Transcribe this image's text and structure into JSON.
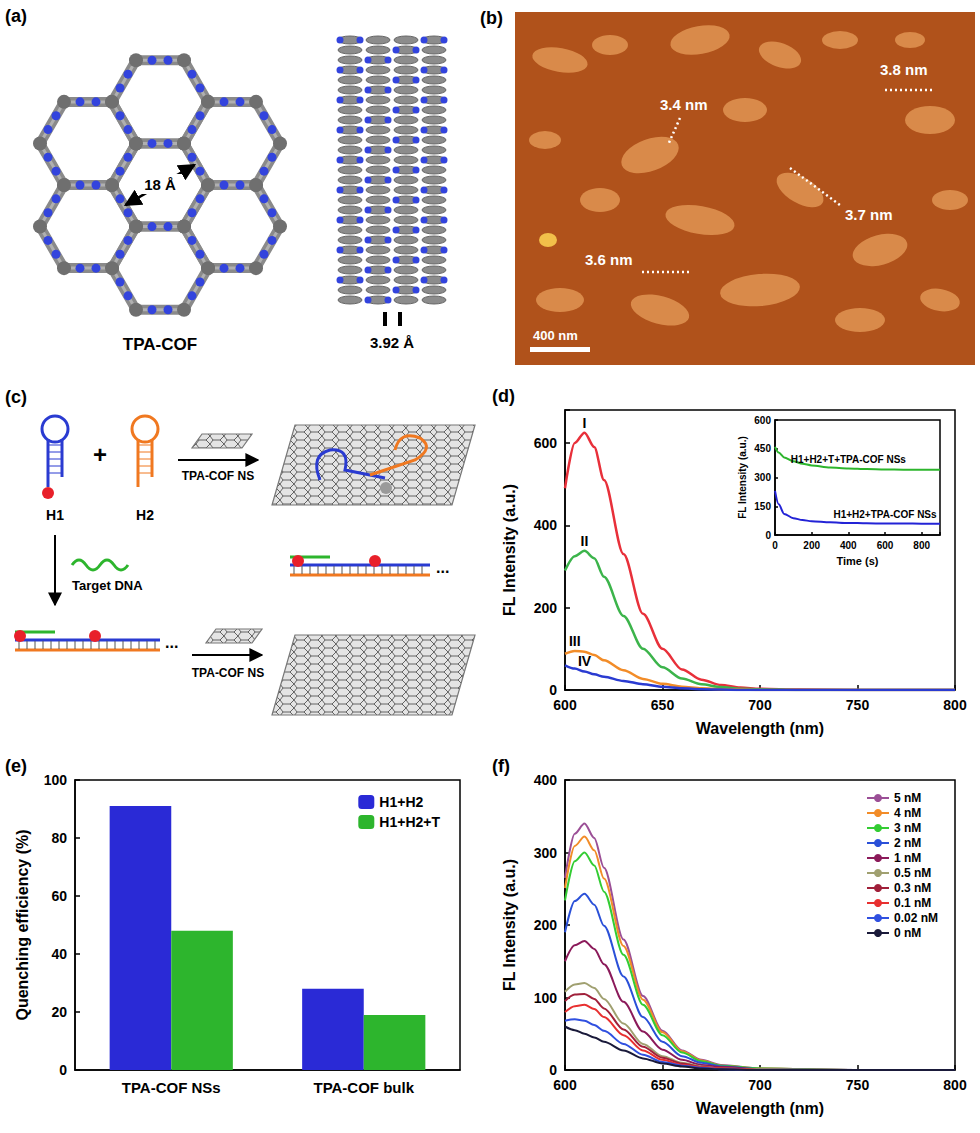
{
  "chart_data": [
    {
      "panel": "(d)",
      "type": "line",
      "xlabel": "Wavelength (nm)",
      "ylabel": "FL Intensity (a.u.)",
      "x": [
        600,
        605,
        610,
        615,
        620,
        630,
        640,
        650,
        660,
        670,
        680,
        690,
        700,
        720,
        750,
        800
      ],
      "series": [
        {
          "name": "I",
          "color": "#e8303a",
          "values": [
            490,
            600,
            625,
            590,
            510,
            330,
            185,
            100,
            50,
            25,
            12,
            6,
            3,
            1,
            0,
            0
          ]
        },
        {
          "name": "II",
          "color": "#3cb44b",
          "values": [
            290,
            325,
            338,
            320,
            275,
            180,
            100,
            55,
            28,
            14,
            7,
            3,
            2,
            0,
            0,
            0
          ]
        },
        {
          "name": "III",
          "color": "#f28c28",
          "values": [
            88,
            95,
            93,
            85,
            72,
            48,
            27,
            15,
            8,
            4,
            2,
            1,
            0,
            0,
            0,
            0
          ]
        },
        {
          "name": "IV",
          "color": "#2a3bd1",
          "values": [
            60,
            52,
            45,
            38,
            32,
            22,
            14,
            8,
            4,
            2,
            1,
            0,
            0,
            0,
            0,
            0
          ]
        }
      ],
      "xlim": [
        600,
        800
      ],
      "xticks": [
        600,
        650,
        700,
        750,
        800
      ],
      "ylim": [
        0,
        680
      ],
      "yticks": [
        0,
        200,
        400,
        600
      ],
      "grid": false,
      "inset": {
        "type": "line",
        "xlabel": "Time (s)",
        "ylabel": "FL Intensity (a.u.)",
        "x": [
          0,
          20,
          50,
          100,
          150,
          200,
          300,
          400,
          500,
          600,
          700,
          800,
          900
        ],
        "series": [
          {
            "name": "H1+H2+T+TPA-COF NSs",
            "color": "#2db52d",
            "values": [
              460,
              430,
              405,
              385,
              372,
              363,
              352,
              347,
              344,
              342,
              341,
              340,
              340
            ]
          },
          {
            "name": "H1+H2+TPA-COF NSs",
            "color": "#2323d6",
            "values": [
              230,
              160,
              110,
              88,
              78,
              72,
              66,
              63,
              61,
              60,
              60,
              59,
              59
            ]
          }
        ],
        "xlim": [
          0,
          900
        ],
        "xticks": [
          0,
          200,
          400,
          600,
          800
        ],
        "ylim": [
          0,
          600
        ],
        "yticks": [
          0,
          150,
          300,
          450,
          600
        ],
        "grid": false
      }
    },
    {
      "panel": "(e)",
      "type": "bar",
      "ylabel": "Quenching efficiency (%)",
      "categories": [
        "TPA-COF NSs",
        "TPA-COF bulk"
      ],
      "series": [
        {
          "name": "H1+H2",
          "color": "#2a2ad6",
          "values": [
            91,
            28
          ]
        },
        {
          "name": "H1+H2+T",
          "color": "#2db52d",
          "values": [
            48,
            19
          ]
        }
      ],
      "ylim": [
        0,
        100
      ],
      "yticks": [
        0,
        20,
        40,
        60,
        80,
        100
      ],
      "legend": "upper right",
      "grid": false
    },
    {
      "panel": "(f)",
      "type": "line",
      "xlabel": "Wavelength (nm)",
      "ylabel": "FL Intensity (a.u.)",
      "x": [
        600,
        605,
        610,
        615,
        620,
        630,
        640,
        650,
        660,
        670,
        680,
        700,
        750,
        800
      ],
      "series": [
        {
          "name": "5 nM",
          "color": "#9b4f96",
          "values": [
            265,
            326,
            340,
            320,
            279,
            180,
            102,
            54,
            27,
            14,
            7,
            2,
            0,
            0
          ]
        },
        {
          "name": "4 nM",
          "color": "#f28c28",
          "values": [
            251,
            309,
            322,
            303,
            264,
            171,
            97,
            52,
            26,
            13,
            6,
            2,
            0,
            0
          ]
        },
        {
          "name": "3 nM",
          "color": "#33cc33",
          "values": [
            234,
            288,
            300,
            282,
            246,
            159,
            90,
            48,
            24,
            12,
            6,
            2,
            0,
            0
          ]
        },
        {
          "name": "2 nM",
          "color": "#2a50d8",
          "values": [
            190,
            233,
            243,
            228,
            199,
            129,
            73,
            39,
            19,
            10,
            5,
            1,
            0,
            0
          ]
        },
        {
          "name": "1 nM",
          "color": "#8b1a5a",
          "values": [
            150,
            172,
            178,
            167,
            146,
            94,
            53,
            28,
            14,
            7,
            4,
            1,
            0,
            0
          ]
        },
        {
          "name": "0.5 nM",
          "color": "#a0a070",
          "values": [
            108,
            118,
            120,
            113,
            98,
            64,
            36,
            19,
            10,
            5,
            2,
            1,
            0,
            0
          ]
        },
        {
          "name": "0.3 nM",
          "color": "#a0203a",
          "values": [
            95,
            104,
            105,
            98,
            85,
            56,
            32,
            17,
            9,
            4,
            2,
            0,
            0,
            0
          ]
        },
        {
          "name": "0.1 nM",
          "color": "#e83030",
          "values": [
            80,
            88,
            90,
            84,
            73,
            48,
            27,
            14,
            7,
            4,
            2,
            0,
            0,
            0
          ]
        },
        {
          "name": "0.02 nM",
          "color": "#3050e0",
          "values": [
            68,
            70,
            68,
            62,
            54,
            36,
            21,
            11,
            6,
            3,
            1,
            0,
            0,
            0
          ]
        },
        {
          "name": "0 nM",
          "color": "#1a1a3a",
          "values": [
            60,
            55,
            50,
            45,
            39,
            27,
            16,
            9,
            5,
            2,
            1,
            0,
            0,
            0
          ]
        }
      ],
      "xlim": [
        600,
        800
      ],
      "xticks": [
        600,
        650,
        700,
        750,
        800
      ],
      "ylim": [
        0,
        400
      ],
      "yticks": [
        0,
        100,
        200,
        300,
        400
      ],
      "legend": "upper right",
      "grid": false
    }
  ],
  "diagrams": {
    "a": {
      "panel": "(a)",
      "name": "TPA-COF",
      "pore_size": "18 Å",
      "layer_spacing": "3.92 Å"
    },
    "b": {
      "panel": "(b)",
      "heights": [
        "3.4 nm",
        "3.8 nm",
        "3.7 nm",
        "3.6 nm"
      ],
      "scale_bar": "400 nm"
    },
    "c": {
      "panel": "(c)",
      "hairpin_1": "H1",
      "hairpin_2": "H2",
      "plus": "+",
      "nanosheet": "TPA-COF NS",
      "target": "Target DNA",
      "continuation": "..."
    }
  }
}
